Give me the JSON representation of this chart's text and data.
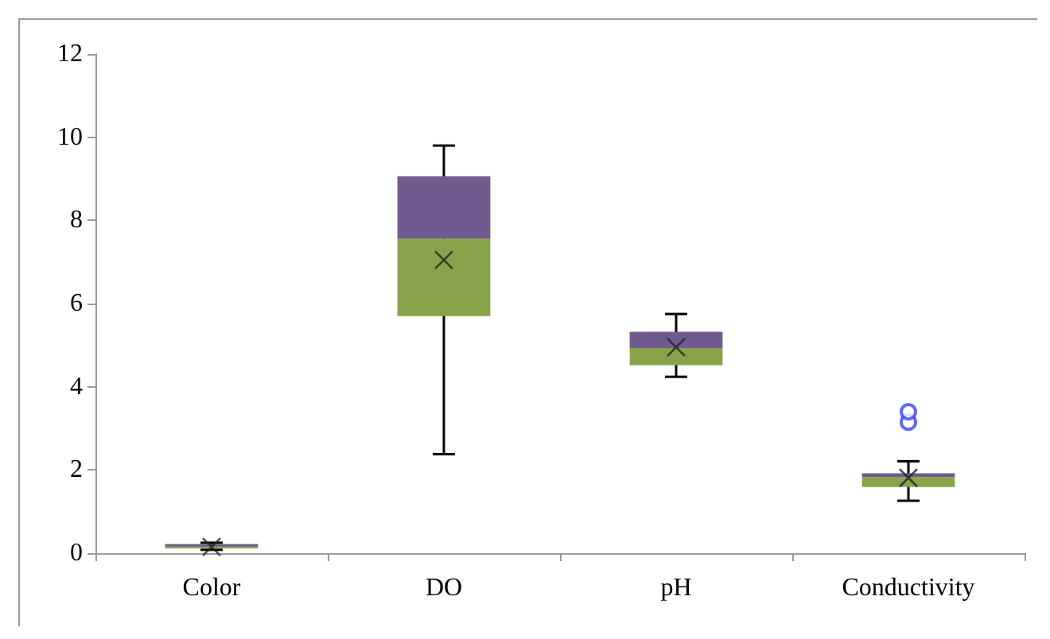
{
  "chart_data": {
    "type": "box",
    "categories": [
      "Color",
      "DO",
      "pH",
      "Conductivity"
    ],
    "series": [
      {
        "color": "#88a34a",
        "boxes": [
          {
            "low": 0.08,
            "q1": 0.12,
            "median": 0.17,
            "q3": 0.22,
            "high": 0.25,
            "mean": 0.15
          },
          {
            "low": 2.38,
            "q1": 5.7,
            "median": 7.56,
            "q3": 9.06,
            "high": 9.8,
            "mean": 7.05
          },
          {
            "low": 4.24,
            "q1": 4.52,
            "median": 4.93,
            "q3": 5.32,
            "high": 5.75,
            "mean": 4.95
          },
          {
            "low": 1.26,
            "q1": 1.59,
            "median": 1.83,
            "q3": 1.92,
            "high": 2.21,
            "mean": 1.81,
            "outliers": [
              3.15,
              3.4
            ]
          }
        ]
      }
    ],
    "colors": [
      "#715a8d",
      "#715a8d",
      "#715a8d",
      "#715a8d"
    ],
    "ylim": [
      0,
      12
    ],
    "yticks": [
      0,
      2,
      4,
      6,
      8,
      10,
      12
    ],
    "grid": false,
    "marker": "cross"
  }
}
